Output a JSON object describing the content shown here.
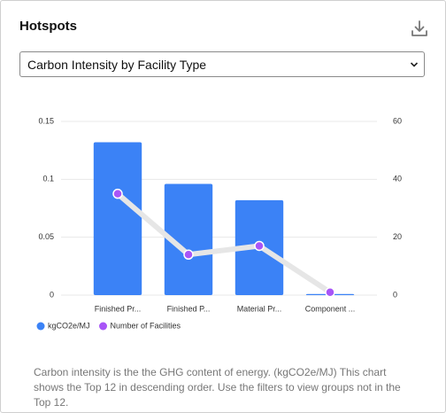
{
  "header": {
    "title": "Hotspots"
  },
  "dropdown": {
    "selected": "Carbon Intensity by Facility Type"
  },
  "chart_data": {
    "type": "bar",
    "categories": [
      "Finished Pr...",
      "Finished P...",
      "Material Pr...",
      "Component ..."
    ],
    "series": [
      {
        "name": "kgCO2e/MJ",
        "color": "#3b82f6",
        "values": [
          0.132,
          0.096,
          0.082,
          0.001
        ]
      },
      {
        "name": "Number of Facilities",
        "color": "#a855f7",
        "line_color": "#e6e6e6",
        "type": "line",
        "axis": "y2",
        "values": [
          35,
          14,
          17,
          1
        ]
      }
    ],
    "ylim": [
      0,
      0.15
    ],
    "yticks": [
      0,
      0.05,
      0.1,
      0.15
    ],
    "y2lim": [
      0,
      60
    ],
    "y2ticks": [
      0,
      20,
      40,
      60
    ],
    "grid": true,
    "legend": "bottom-left"
  },
  "footnote": "Carbon intensity is the the GHG content of energy. (kgCO2e/MJ) This chart shows the Top 12 in descending order. Use the filters to view groups not in the Top 12."
}
